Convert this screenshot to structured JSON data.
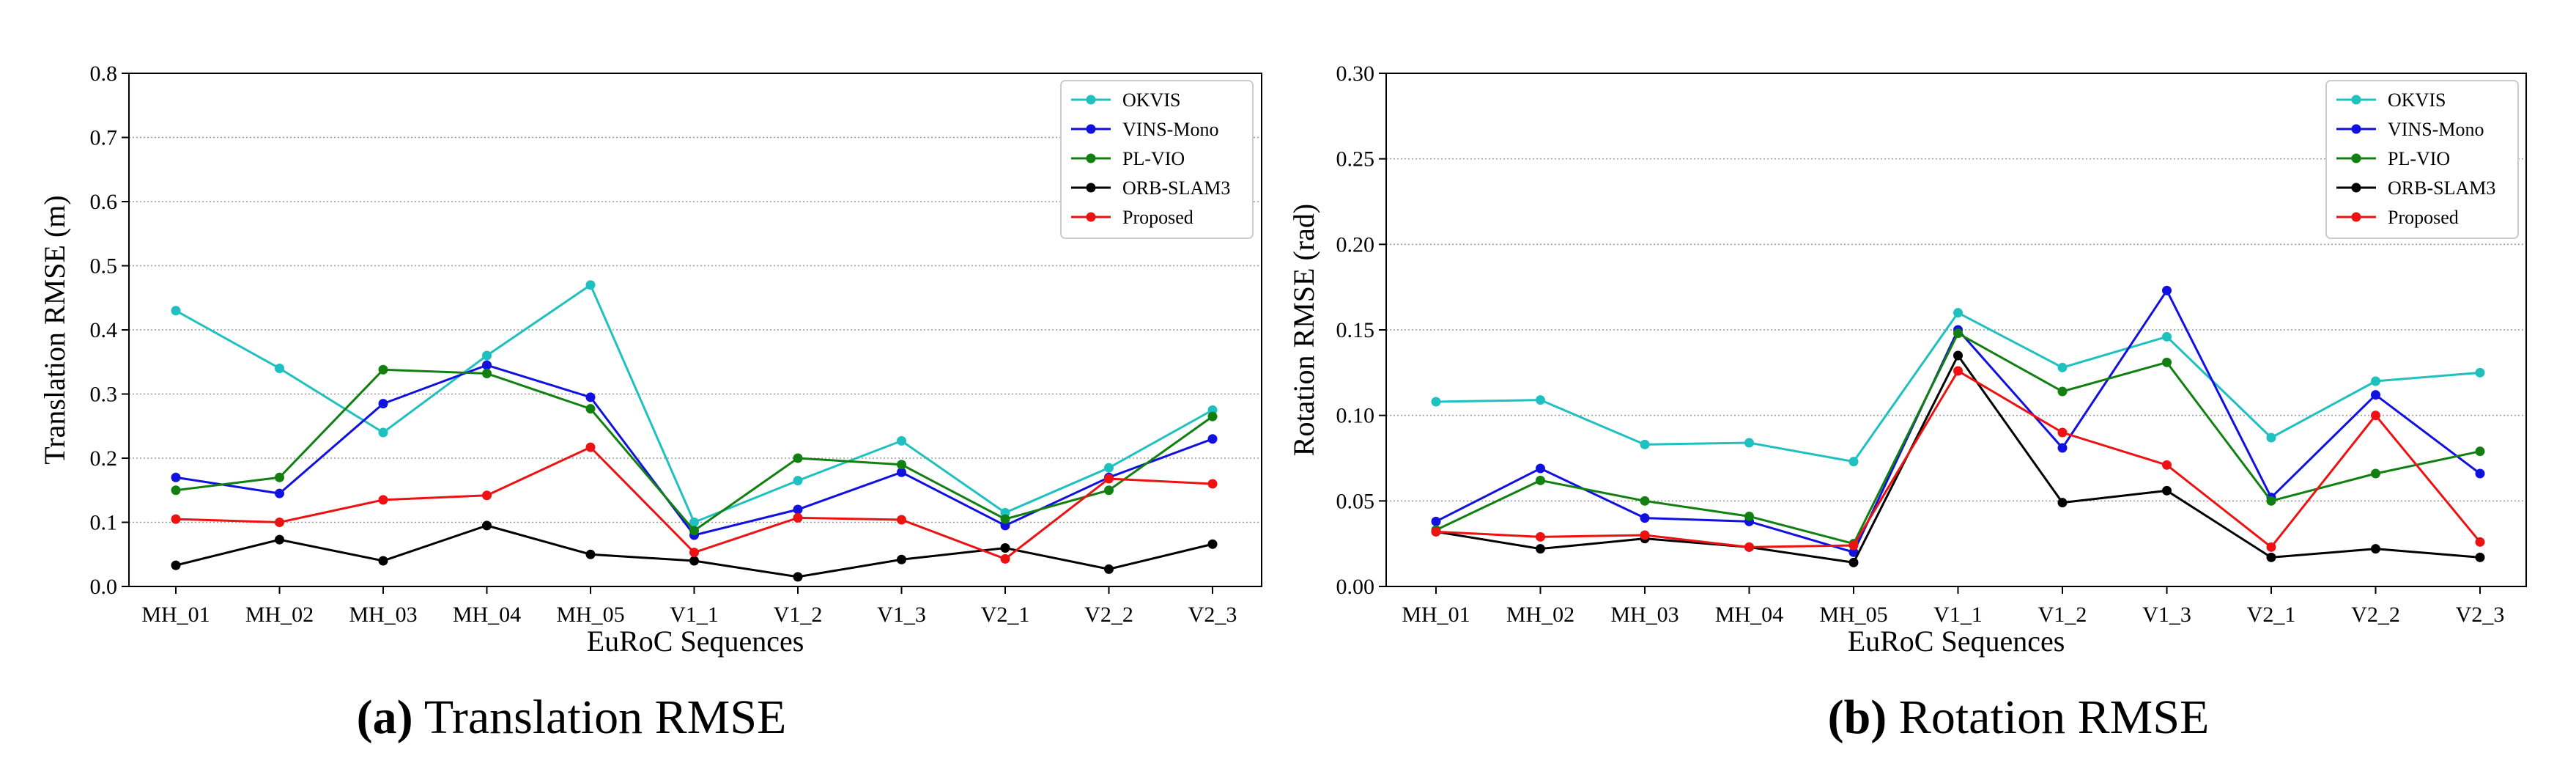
{
  "chart_data": [
    {
      "type": "line",
      "id": "translation",
      "categories": [
        "MH_01",
        "MH_02",
        "MH_03",
        "MH_04",
        "MH_05",
        "V1_1",
        "V1_2",
        "V1_3",
        "V2_1",
        "V2_2",
        "V2_3"
      ],
      "series": [
        {
          "name": "OKVIS",
          "color": "#1fc0c0",
          "values": [
            0.43,
            0.34,
            0.24,
            0.36,
            0.47,
            0.1,
            0.165,
            0.227,
            0.115,
            0.185,
            0.275
          ]
        },
        {
          "name": "VINS-Mono",
          "color": "#1010e0",
          "values": [
            0.17,
            0.145,
            0.285,
            0.345,
            0.295,
            0.08,
            0.12,
            0.178,
            0.095,
            0.17,
            0.23
          ]
        },
        {
          "name": "PL-VIO",
          "color": "#118011",
          "values": [
            0.15,
            0.17,
            0.338,
            0.332,
            0.277,
            0.087,
            0.2,
            0.19,
            0.105,
            0.15,
            0.265
          ]
        },
        {
          "name": "ORB-SLAM3",
          "color": "#000000",
          "values": [
            0.033,
            0.073,
            0.04,
            0.095,
            0.05,
            0.04,
            0.015,
            0.042,
            0.06,
            0.027,
            0.066
          ]
        },
        {
          "name": "Proposed",
          "color": "#ee1111",
          "values": [
            0.105,
            0.1,
            0.135,
            0.142,
            0.217,
            0.053,
            0.107,
            0.104,
            0.043,
            0.168,
            0.16
          ]
        }
      ],
      "xlabel": "EuRoC Sequences",
      "ylabel": "Translation RMSE (m)",
      "ylim": [
        0,
        0.8
      ],
      "yticks": [
        "0.0",
        "0.1",
        "0.2",
        "0.3",
        "0.4",
        "0.5",
        "0.6",
        "0.7",
        "0.8"
      ],
      "grid": "horizontal dotted",
      "legend": "top-right"
    },
    {
      "type": "line",
      "id": "rotation",
      "categories": [
        "MH_01",
        "MH_02",
        "MH_03",
        "MH_04",
        "MH_05",
        "V1_1",
        "V1_2",
        "V1_3",
        "V2_1",
        "V2_2",
        "V2_3"
      ],
      "series": [
        {
          "name": "OKVIS",
          "color": "#1fc0c0",
          "values": [
            0.108,
            0.109,
            0.083,
            0.084,
            0.073,
            0.16,
            0.128,
            0.146,
            0.087,
            0.12,
            0.125
          ]
        },
        {
          "name": "VINS-Mono",
          "color": "#1010e0",
          "values": [
            0.038,
            0.069,
            0.04,
            0.038,
            0.02,
            0.15,
            0.081,
            0.173,
            0.052,
            0.112,
            0.066
          ]
        },
        {
          "name": "PL-VIO",
          "color": "#118011",
          "values": [
            0.033,
            0.062,
            0.05,
            0.041,
            0.025,
            0.148,
            0.114,
            0.131,
            0.05,
            0.066,
            0.079
          ]
        },
        {
          "name": "ORB-SLAM3",
          "color": "#000000",
          "values": [
            0.032,
            0.022,
            0.028,
            0.023,
            0.014,
            0.135,
            0.049,
            0.056,
            0.017,
            0.022,
            0.017
          ]
        },
        {
          "name": "Proposed",
          "color": "#ee1111",
          "values": [
            0.032,
            0.029,
            0.03,
            0.023,
            0.024,
            0.126,
            0.09,
            0.071,
            0.023,
            0.1,
            0.026
          ]
        }
      ],
      "xlabel": "EuRoC Sequences",
      "ylabel": "Rotation RMSE (rad)",
      "ylim": [
        0,
        0.3
      ],
      "yticks": [
        "0.00",
        "0.05",
        "0.10",
        "0.15",
        "0.20",
        "0.25",
        "0.30"
      ],
      "grid": "horizontal dotted",
      "legend": "top-right"
    }
  ],
  "captions": [
    {
      "letter": "(a)",
      "text": " Translation RMSE"
    },
    {
      "letter": "(b)",
      "text": " Rotation RMSE"
    }
  ]
}
